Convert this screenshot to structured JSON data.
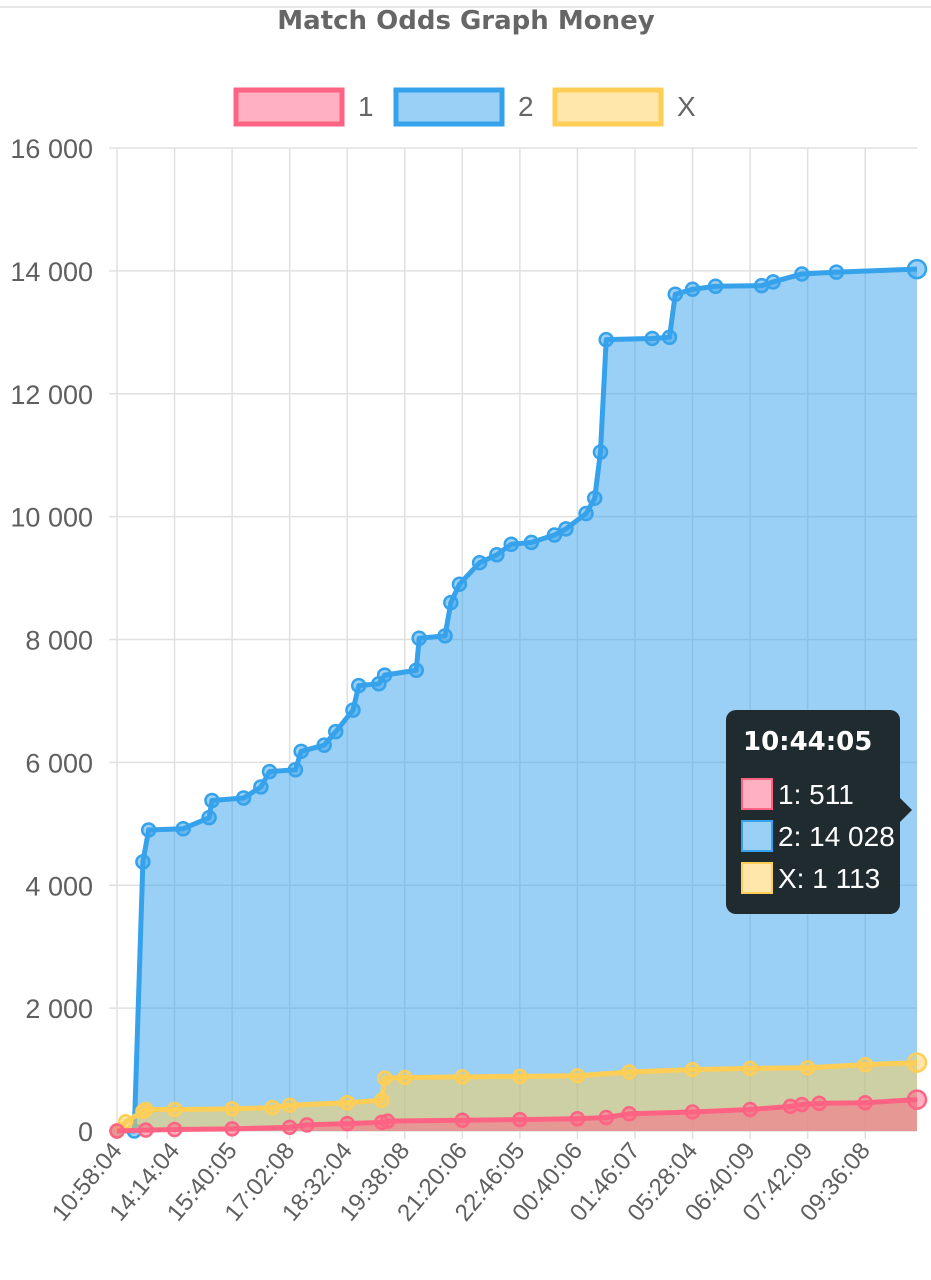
{
  "chart_data": {
    "type": "area",
    "title": "Match Odds Graph Money",
    "legend_position": "top",
    "grid": true,
    "ylim": [
      0,
      16000
    ],
    "y_ticks": [
      "16 000",
      "14 000",
      "12 000",
      "10 000",
      "8 000",
      "6 000",
      "4 000",
      "2 000",
      "0"
    ],
    "y_tick_values": [
      16000,
      14000,
      12000,
      10000,
      8000,
      6000,
      4000,
      2000,
      0
    ],
    "x_ticks": [
      "10:58:04",
      "14:14:04",
      "15:40:05",
      "17:02:08",
      "18:32:04",
      "19:38:08",
      "21:20:06",
      "22:46:05",
      "00:40:06",
      "01:46:07",
      "05:28:04",
      "06:40:09",
      "07:42:09",
      "09:36:08"
    ],
    "x_range": [
      0,
      13.9
    ],
    "series": [
      {
        "name": "1",
        "color": "#ff6384",
        "fill": "rgba(255,99,132,0.5)",
        "points": [
          [
            0,
            0
          ],
          [
            0.5,
            15
          ],
          [
            1,
            25
          ],
          [
            2,
            35
          ],
          [
            3,
            60
          ],
          [
            3.3,
            100
          ],
          [
            4,
            120
          ],
          [
            4.6,
            140
          ],
          [
            4.7,
            160
          ],
          [
            6,
            175
          ],
          [
            7,
            185
          ],
          [
            8,
            200
          ],
          [
            8.5,
            220
          ],
          [
            8.9,
            280
          ],
          [
            10,
            310
          ],
          [
            11,
            350
          ],
          [
            11.7,
            400
          ],
          [
            11.9,
            430
          ],
          [
            12.2,
            450
          ],
          [
            13,
            460
          ],
          [
            13.9,
            511
          ]
        ]
      },
      {
        "name": "2",
        "color": "#36a2eb",
        "fill": "rgba(54,162,235,0.5)",
        "points": [
          [
            0,
            0
          ],
          [
            0.3,
            0
          ],
          [
            0.45,
            4380
          ],
          [
            0.55,
            4900
          ],
          [
            1.15,
            4920
          ],
          [
            1.6,
            5100
          ],
          [
            1.65,
            5380
          ],
          [
            2.2,
            5420
          ],
          [
            2.5,
            5600
          ],
          [
            2.65,
            5850
          ],
          [
            3.1,
            5880
          ],
          [
            3.2,
            6180
          ],
          [
            3.6,
            6280
          ],
          [
            3.8,
            6500
          ],
          [
            4.1,
            6850
          ],
          [
            4.2,
            7250
          ],
          [
            4.55,
            7280
          ],
          [
            4.65,
            7420
          ],
          [
            5.2,
            7500
          ],
          [
            5.25,
            8020
          ],
          [
            5.7,
            8060
          ],
          [
            5.8,
            8600
          ],
          [
            5.95,
            8900
          ],
          [
            6.3,
            9250
          ],
          [
            6.6,
            9380
          ],
          [
            6.85,
            9550
          ],
          [
            7.2,
            9580
          ],
          [
            7.6,
            9700
          ],
          [
            7.8,
            9800
          ],
          [
            8.15,
            10050
          ],
          [
            8.3,
            10300
          ],
          [
            8.4,
            11050
          ],
          [
            8.5,
            12880
          ],
          [
            9.3,
            12900
          ],
          [
            9.6,
            12920
          ],
          [
            9.7,
            13620
          ],
          [
            10,
            13700
          ],
          [
            10.4,
            13750
          ],
          [
            11.2,
            13760
          ],
          [
            11.4,
            13820
          ],
          [
            11.9,
            13950
          ],
          [
            12.5,
            13980
          ],
          [
            13.9,
            14028
          ]
        ]
      },
      {
        "name": "X",
        "color": "#ffce56",
        "fill": "rgba(255,206,86,0.5)",
        "points": [
          [
            0,
            0
          ],
          [
            0.15,
            150
          ],
          [
            0.45,
            320
          ],
          [
            0.5,
            350
          ],
          [
            1,
            350
          ],
          [
            2,
            360
          ],
          [
            2.7,
            380
          ],
          [
            3,
            420
          ],
          [
            4,
            460
          ],
          [
            4.6,
            500
          ],
          [
            4.65,
            860
          ],
          [
            5,
            870
          ],
          [
            6,
            880
          ],
          [
            7,
            890
          ],
          [
            8,
            900
          ],
          [
            8.9,
            960
          ],
          [
            10,
            1000
          ],
          [
            11,
            1020
          ],
          [
            12,
            1030
          ],
          [
            13,
            1080
          ],
          [
            13.9,
            1113
          ]
        ]
      }
    ],
    "tooltip": {
      "title": "10:44:05",
      "lines": [
        {
          "label": "1: 511",
          "color": "#ff6384"
        },
        {
          "label": "2: 14 028",
          "color": "#36a2eb"
        },
        {
          "label": "X: 1 113",
          "color": "#ffce56"
        }
      ]
    }
  }
}
